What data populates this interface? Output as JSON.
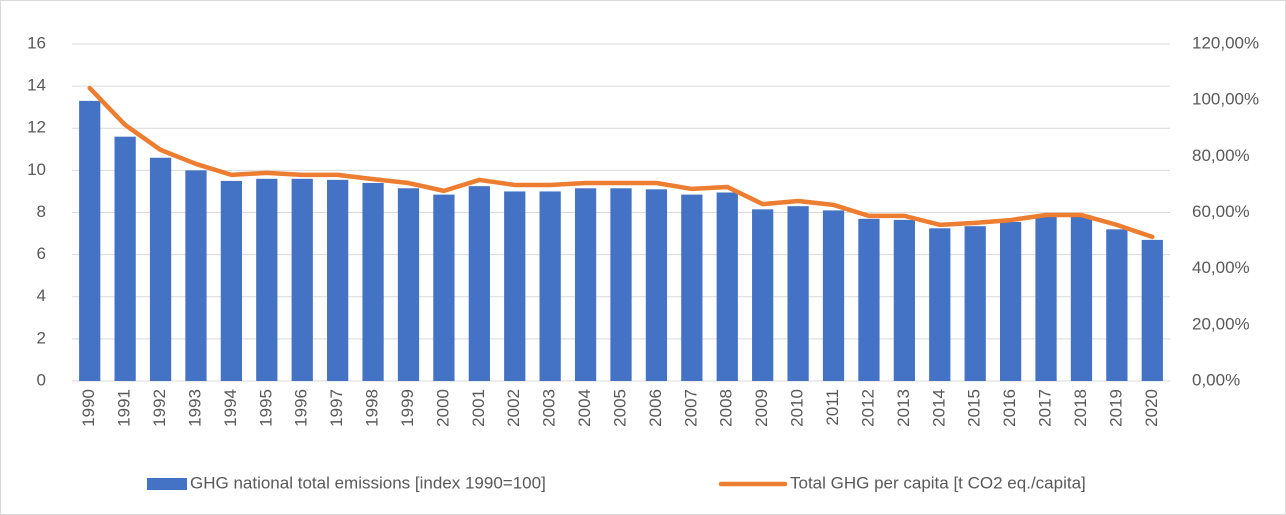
{
  "chart_data": {
    "type": "bar_line",
    "categories": [
      "1990",
      "1991",
      "1992",
      "1993",
      "1994",
      "1995",
      "1996",
      "1997",
      "1998",
      "1999",
      "2000",
      "2001",
      "2002",
      "2003",
      "2004",
      "2005",
      "2006",
      "2007",
      "2008",
      "2009",
      "2010",
      "2011",
      "2012",
      "2013",
      "2014",
      "2015",
      "2016",
      "2017",
      "2018",
      "2019",
      "2020"
    ],
    "series": [
      {
        "name": "GHG national total emissions [index 1990=100]",
        "type": "bar",
        "color": "#4472c4",
        "axis": "y",
        "values": [
          13.3,
          11.6,
          10.6,
          10.0,
          9.5,
          9.6,
          9.6,
          9.55,
          9.4,
          9.15,
          8.85,
          9.25,
          9.0,
          9.0,
          9.15,
          9.15,
          9.1,
          8.85,
          8.95,
          8.15,
          8.3,
          8.1,
          7.7,
          7.65,
          7.25,
          7.35,
          7.55,
          7.9,
          7.85,
          7.2,
          6.7
        ]
      },
      {
        "name": "Total GHG per capita [t CO2 eq./capita]",
        "type": "line",
        "color": "#ed7d31",
        "axis": "y2",
        "values": [
          104.3,
          91.2,
          82.3,
          77.3,
          73.4,
          74.1,
          73.4,
          73.4,
          71.9,
          70.5,
          67.7,
          71.6,
          69.8,
          69.8,
          70.5,
          70.5,
          70.5,
          68.4,
          69.1,
          63.0,
          64.1,
          62.7,
          58.8,
          58.8,
          55.6,
          56.3,
          57.3,
          59.1,
          59.1,
          55.6,
          51.3
        ]
      }
    ],
    "ylim": [
      0,
      16
    ],
    "yticks": [
      0,
      2,
      4,
      6,
      8,
      10,
      12,
      14,
      16
    ],
    "y2lim": [
      0,
      120
    ],
    "y2ticks": [
      {
        "value": 0,
        "label": "0,00%"
      },
      {
        "value": 20,
        "label": "20,00%"
      },
      {
        "value": 40,
        "label": "40,00%"
      },
      {
        "value": 60,
        "label": "60,00%"
      },
      {
        "value": 80,
        "label": "80,00%"
      },
      {
        "value": 100,
        "label": "100,00%"
      },
      {
        "value": 120,
        "label": "120,00%"
      }
    ],
    "grid": true,
    "legend": "bottom"
  }
}
